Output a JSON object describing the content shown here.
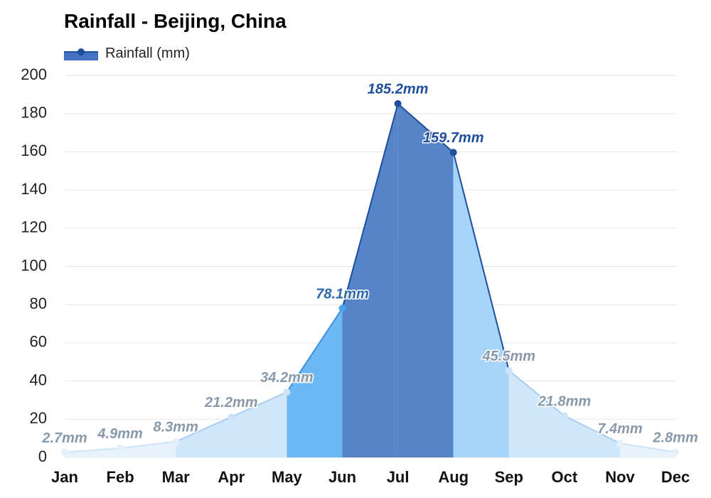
{
  "chart_data": {
    "type": "area",
    "title": "Rainfall - Beijing, China",
    "legend": [
      "Rainfall (mm)"
    ],
    "categories": [
      "Jan",
      "Feb",
      "Mar",
      "Apr",
      "May",
      "Jun",
      "Jul",
      "Aug",
      "Sep",
      "Oct",
      "Nov",
      "Dec"
    ],
    "series": [
      {
        "name": "Rainfall (mm)",
        "values": [
          2.7,
          4.9,
          8.3,
          21.2,
          34.2,
          78.1,
          185.2,
          159.7,
          45.5,
          21.8,
          7.4,
          2.8
        ],
        "data_labels": [
          "2.7mm",
          "4.9mm",
          "8.3mm",
          "21.2mm",
          "34.2mm",
          "78.1mm",
          "185.2mm",
          "159.7mm",
          "45.5mm",
          "21.8mm",
          "7.4mm",
          "2.8mm"
        ]
      }
    ],
    "ylim": [
      0,
      200
    ],
    "yticks": [
      0,
      20,
      40,
      60,
      80,
      100,
      120,
      140,
      160,
      180,
      200
    ],
    "grid": true,
    "legend_position": "top-left",
    "colors": {
      "very_low": "#e8f2fc",
      "low": "#cfe6fb",
      "medium": "#6cb8f5",
      "high": "#a7d5fa",
      "very_high": "#5585c8",
      "dark_text": "#1f4e9c",
      "mid_text": "#2c6aa8",
      "light_text": "#8899aa"
    }
  }
}
